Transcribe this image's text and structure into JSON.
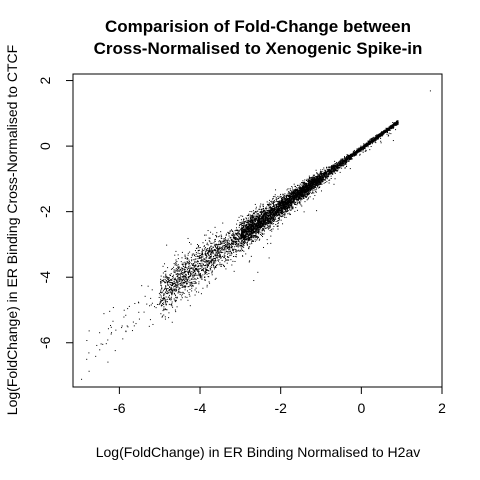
{
  "chart_data": {
    "type": "scatter",
    "title_lines": [
      "Comparision of Fold-Change between",
      "Cross-Normalised to Xenogenic Spike-in"
    ],
    "xlabel": "Log(FoldChange) in ER Binding Normalised to H2av",
    "ylabel": "Log(FoldChange) in ER Binding Cross-Normalised to CTCF",
    "xlim": [
      -7.15,
      2.0
    ],
    "ylim": [
      -7.35,
      2.2
    ],
    "x_ticks": [
      -6,
      -4,
      -2,
      0,
      2
    ],
    "y_ticks": [
      -6,
      -4,
      -2,
      0,
      2
    ],
    "x_tick_labels": [
      "-6",
      "-4",
      "-2",
      "0",
      "2"
    ],
    "y_tick_labels": [
      "-6",
      "-4",
      "-2",
      "0",
      "2"
    ],
    "grid": false,
    "legend": "none",
    "point_color": "#000000",
    "trend": {
      "slope": 0.89,
      "intercept": -0.05
    },
    "point_density_profile": [
      {
        "x_from": -7.0,
        "x_to": -5.0,
        "approx_points": 60
      },
      {
        "x_from": -5.0,
        "x_to": -3.0,
        "approx_points": 1400
      },
      {
        "x_from": -3.0,
        "x_to": -1.0,
        "approx_points": 3400
      },
      {
        "x_from": -1.0,
        "x_to": 0.9,
        "approx_points": 1600
      }
    ],
    "points": [
      {
        "x": -6.95,
        "y": -7.1
      },
      {
        "x": 1.7,
        "y": 1.7
      },
      {
        "x": -6.5,
        "y": -6.2
      },
      {
        "x": -6.3,
        "y": -5.9
      },
      {
        "x": -6.1,
        "y": -5.6
      },
      {
        "x": -5.8,
        "y": -5.5
      },
      {
        "x": -5.6,
        "y": -5.4
      },
      {
        "x": -6.6,
        "y": -6.4
      },
      {
        "x": -5.9,
        "y": -5.2
      },
      {
        "x": -5.4,
        "y": -5.05
      }
    ]
  }
}
